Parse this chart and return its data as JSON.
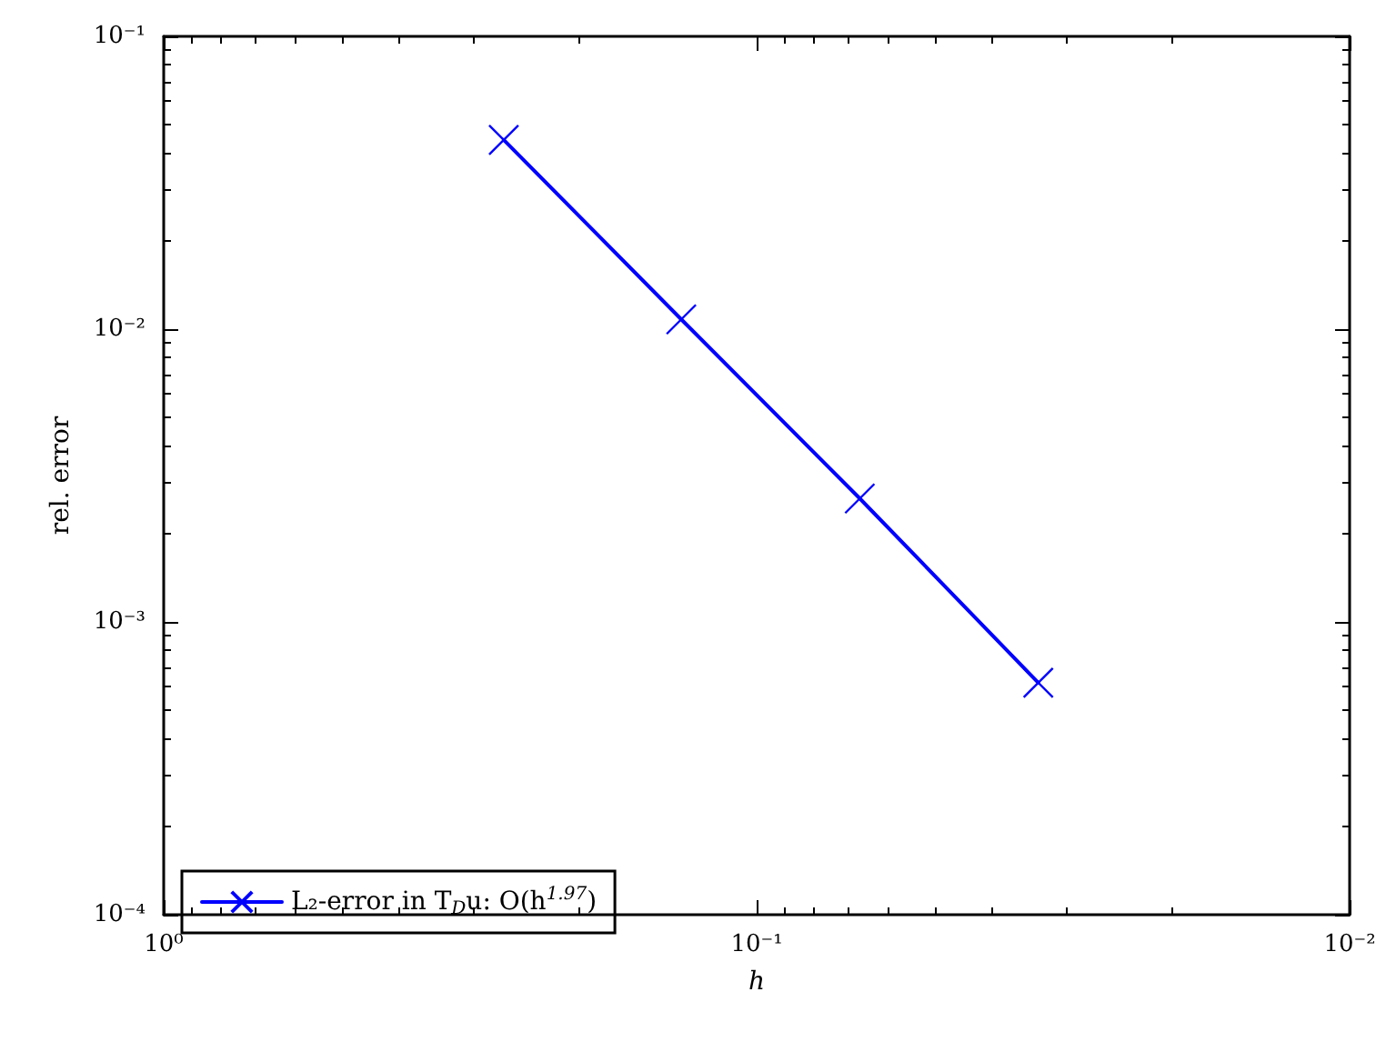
{
  "chart_data": {
    "type": "line",
    "xlabel": "h",
    "ylabel": "rel. error",
    "x": [
      0.267,
      0.134,
      0.067,
      0.0335
    ],
    "series": [
      {
        "name": "L₂-error in T$_{D}$u: O(h$^{1.97}$)",
        "color": "#0000ff",
        "values": [
          0.0443,
          0.0108,
          0.00264,
          0.00062
        ]
      }
    ],
    "log": "xy",
    "xlim": [
      1,
      0.01
    ],
    "xticks": [
      {
        "value": 1,
        "label": "10⁰"
      },
      {
        "value": 0.1,
        "label": "10⁻¹"
      },
      {
        "value": 0.01,
        "label": "10⁻²"
      }
    ],
    "ylim": [
      0.0001,
      0.1
    ],
    "yticks": [
      {
        "value": 0.1,
        "label": "10⁻¹"
      },
      {
        "value": 0.01,
        "label": "10⁻²"
      },
      {
        "value": 0.001,
        "label": "10⁻³"
      },
      {
        "value": 0.0001,
        "label": "10⁻⁴"
      }
    ],
    "grid": false,
    "legend": "bottom left",
    "marker": "cross",
    "line_style": "solid"
  }
}
